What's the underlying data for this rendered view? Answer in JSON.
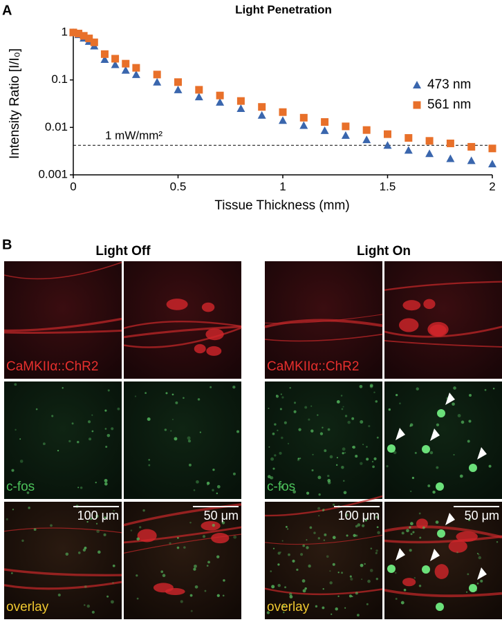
{
  "panel_a_label": "A",
  "panel_b_label": "B",
  "chart_data": {
    "type": "scatter",
    "title": "Light Penetration",
    "x_label": "Tissue Thickness (mm)",
    "y_label": "Intensity Ratio [I/I₀]",
    "log_y": true,
    "xlim": [
      0,
      2
    ],
    "ylim": [
      0.001,
      1
    ],
    "xticks": [
      0,
      0.5,
      1,
      1.5,
      2
    ],
    "yticks": [
      0.001,
      0.01,
      0.1,
      1
    ],
    "legend": "right",
    "x": [
      0,
      0.025,
      0.05,
      0.075,
      0.1,
      0.15,
      0.2,
      0.25,
      0.3,
      0.4,
      0.5,
      0.6,
      0.7,
      0.8,
      0.9,
      1.0,
      1.1,
      1.2,
      1.3,
      1.4,
      1.5,
      1.6,
      1.7,
      1.8,
      1.9,
      2.0
    ],
    "series": [
      {
        "name": "473 nm",
        "color": "#3a66ad",
        "marker": "triangle",
        "values": [
          1,
          0.9,
          0.76,
          0.65,
          0.52,
          0.27,
          0.21,
          0.16,
          0.13,
          0.09,
          0.062,
          0.044,
          0.034,
          0.025,
          0.018,
          0.014,
          0.011,
          0.0086,
          0.0068,
          0.0055,
          0.0042,
          0.0033,
          0.0028,
          0.0022,
          0.002,
          0.0017
        ]
      },
      {
        "name": "561 nm",
        "color": "#e8702a",
        "marker": "square",
        "values": [
          1,
          0.95,
          0.85,
          0.75,
          0.62,
          0.35,
          0.28,
          0.22,
          0.18,
          0.13,
          0.09,
          0.062,
          0.047,
          0.036,
          0.027,
          0.021,
          0.016,
          0.013,
          0.0105,
          0.0088,
          0.0072,
          0.006,
          0.0052,
          0.0046,
          0.0039,
          0.0036
        ]
      }
    ],
    "threshold": {
      "value": 0.0042,
      "label": "1 mW/mm²"
    }
  },
  "panel_b": {
    "groups": [
      {
        "title": "Light Off",
        "row_labels": [
          "CaMKIIα::ChR2",
          "c-fos",
          "overlay"
        ],
        "scale_bars": [
          "100 μm",
          "50 μm"
        ]
      },
      {
        "title": "Light On",
        "row_labels": [
          "CaMKIIα::ChR2",
          "c-fos",
          "overlay"
        ],
        "scale_bars": [
          "100 μm",
          "50 μm"
        ]
      }
    ]
  }
}
